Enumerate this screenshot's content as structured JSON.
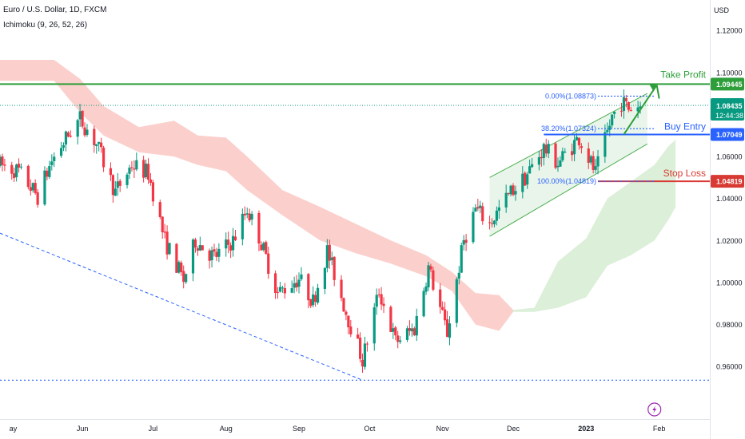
{
  "header": {
    "title": "Euro / U.S. Dollar, 1D, FXCM",
    "indicator": "Ichimoku (9, 26, 52, 26)",
    "currency": "USD"
  },
  "colors": {
    "bull": "#26a69a",
    "bull_body": "#089981",
    "bear": "#f23645",
    "kumo_bear": "#fbd0cc",
    "kumo_bull": "#dcefd8",
    "take_profit": "#2e9e3a",
    "buy_entry": "#2962ff",
    "stop_loss": "#d83a33",
    "fib": "#2962ff",
    "channel": "#4caf50",
    "price_line": "#089981"
  },
  "chart_data": {
    "type": "candlestick",
    "title": "Euro / U.S. Dollar, 1D, FXCM",
    "ylabel": "USD",
    "ylim": [
      0.9445,
      1.1345
    ],
    "y_ticks": [
      "1.12000",
      "1.10000",
      "1.08000",
      "1.06000",
      "1.04000",
      "1.02000",
      "1.00000",
      "0.98000",
      "0.96000"
    ],
    "x_ticks": [
      "ay",
      "Jun",
      "Jul",
      "Aug",
      "Sep",
      "Oct",
      "Nov",
      "Dec",
      "2023",
      "Feb"
    ],
    "x_tick_dates": [
      "2022-05-01",
      "2022-06-01",
      "2022-07-01",
      "2022-08-01",
      "2022-09-01",
      "2022-10-01",
      "2022-11-01",
      "2022-12-01",
      "2023-01-01",
      "2023-02-01"
    ],
    "price_path": [
      [
        "2022-04-27",
        1.056
      ],
      [
        "2022-05-05",
        1.053
      ],
      [
        "2022-05-13",
        1.041
      ],
      [
        "2022-05-19",
        1.058
      ],
      [
        "2022-05-27",
        1.072
      ],
      [
        "2022-05-31",
        1.078
      ],
      [
        "2022-06-07",
        1.066
      ],
      [
        "2022-06-15",
        1.043
      ],
      [
        "2022-06-22",
        1.056
      ],
      [
        "2022-06-29",
        1.052
      ],
      [
        "2022-07-06",
        1.02
      ],
      [
        "2022-07-14",
        1.001
      ],
      [
        "2022-07-19",
        1.02
      ],
      [
        "2022-07-27",
        1.012
      ],
      [
        "2022-08-04",
        1.02
      ],
      [
        "2022-08-10",
        1.035
      ],
      [
        "2022-08-15",
        1.022
      ],
      [
        "2022-08-23",
        0.995
      ],
      [
        "2022-09-01",
        1.002
      ],
      [
        "2022-09-07",
        0.991
      ],
      [
        "2022-09-13",
        1.015
      ],
      [
        "2022-09-21",
        0.986
      ],
      [
        "2022-09-28",
        0.963
      ],
      [
        "2022-10-05",
        0.996
      ],
      [
        "2022-10-12",
        0.972
      ],
      [
        "2022-10-20",
        0.978
      ],
      [
        "2022-10-26",
        1.007
      ],
      [
        "2022-11-03",
        0.976
      ],
      [
        "2022-11-10",
        1.02
      ],
      [
        "2022-11-15",
        1.035
      ],
      [
        "2022-11-21",
        1.028
      ],
      [
        "2022-11-30",
        1.043
      ],
      [
        "2022-12-06",
        1.05
      ],
      [
        "2022-12-14",
        1.064
      ],
      [
        "2022-12-20",
        1.057
      ],
      [
        "2022-12-29",
        1.069
      ],
      [
        "2023-01-05",
        1.052
      ],
      [
        "2023-01-12",
        1.079
      ],
      [
        "2023-01-16",
        1.086
      ],
      [
        "2023-01-19",
        1.083
      ],
      [
        "2023-01-24",
        1.08435
      ]
    ],
    "kumo_bear": [
      [
        "2022-04-27",
        1.106,
        1.096
      ],
      [
        "2022-05-20",
        1.106,
        1.096
      ],
      [
        "2022-05-31",
        1.097,
        1.081
      ],
      [
        "2022-06-10",
        1.084,
        1.07
      ],
      [
        "2022-06-25",
        1.074,
        1.062
      ],
      [
        "2022-07-10",
        1.077,
        1.06
      ],
      [
        "2022-07-20",
        1.07,
        1.056
      ],
      [
        "2022-08-01",
        1.069,
        1.053
      ],
      [
        "2022-08-10",
        1.06,
        1.044
      ],
      [
        "2022-08-25",
        1.044,
        1.032
      ],
      [
        "2022-09-10",
        1.036,
        1.02
      ],
      [
        "2022-09-25",
        1.028,
        1.014
      ],
      [
        "2022-10-10",
        1.02,
        1.009
      ],
      [
        "2022-10-25",
        1.013,
        1.003
      ],
      [
        "2022-11-05",
        1.005,
        0.996
      ],
      [
        "2022-11-15",
        0.995,
        0.98
      ],
      [
        "2022-11-25",
        0.994,
        0.977
      ],
      [
        "2022-12-01",
        0.987,
        0.986
      ]
    ],
    "kumo_bull": [
      [
        "2022-12-01",
        0.987,
        0.986
      ],
      [
        "2022-12-10",
        0.988,
        0.986
      ],
      [
        "2022-12-20",
        1.01,
        0.988
      ],
      [
        "2023-01-01",
        1.021,
        0.993
      ],
      [
        "2023-01-10",
        1.04,
        1.008
      ],
      [
        "2023-01-20",
        1.048,
        1.013
      ],
      [
        "2023-01-30",
        1.056,
        1.02
      ],
      [
        "2023-02-05",
        1.065,
        1.03
      ],
      [
        "2023-02-08",
        1.068,
        1.036
      ]
    ],
    "levels": {
      "take_profit": {
        "label": "Take Profit",
        "value": 1.09445,
        "value_label": "1.09445"
      },
      "buy_entry": {
        "label": "Buy Entry",
        "value": 1.07049,
        "value_label": "1.07049"
      },
      "stop_loss": {
        "label": "Stop Loss",
        "value": 1.04819,
        "value_label": "1.04819"
      },
      "support": {
        "value": 0.9535
      }
    },
    "fibonacci": [
      {
        "label": "0.00%(1.08873)",
        "value": 1.08873
      },
      {
        "label": "38.20%(1.07324)",
        "value": 1.07324
      },
      {
        "label": "100.00%(1.04819)",
        "value": 1.04819
      }
    ],
    "last_price": {
      "value": 1.08435,
      "value_label": "1.08435",
      "countdown": "12:44:38"
    },
    "channel": {
      "start_date": "2022-11-21",
      "end_date": "2023-01-27",
      "upper": [
        1.05,
        1.09
      ],
      "lower": [
        1.022,
        1.066
      ]
    },
    "trendline": {
      "from": [
        "2022-04-27",
        1.0235
      ],
      "to": [
        "2022-09-28",
        0.9535
      ]
    }
  }
}
